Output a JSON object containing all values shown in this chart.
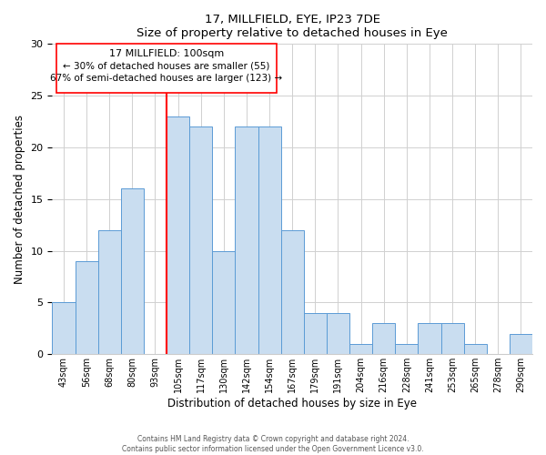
{
  "title": "17, MILLFIELD, EYE, IP23 7DE",
  "subtitle": "Size of property relative to detached houses in Eye",
  "xlabel": "Distribution of detached houses by size in Eye",
  "ylabel": "Number of detached properties",
  "bar_color": "#c9ddf0",
  "bar_edge_color": "#5b9bd5",
  "categories": [
    "43sqm",
    "56sqm",
    "68sqm",
    "80sqm",
    "93sqm",
    "105sqm",
    "117sqm",
    "130sqm",
    "142sqm",
    "154sqm",
    "167sqm",
    "179sqm",
    "191sqm",
    "204sqm",
    "216sqm",
    "228sqm",
    "241sqm",
    "253sqm",
    "265sqm",
    "278sqm",
    "290sqm"
  ],
  "values": [
    5,
    9,
    12,
    16,
    0,
    23,
    22,
    10,
    22,
    22,
    12,
    4,
    4,
    1,
    3,
    1,
    3,
    3,
    1,
    0,
    2
  ],
  "ref_line_label": "17 MILLFIELD: 100sqm",
  "annotation_line1": "← 30% of detached houses are smaller (55)",
  "annotation_line2": "67% of semi-detached houses are larger (123) →",
  "ylim": [
    0,
    30
  ],
  "yticks": [
    0,
    5,
    10,
    15,
    20,
    25,
    30
  ],
  "footer1": "Contains HM Land Registry data © Crown copyright and database right 2024.",
  "footer2": "Contains public sector information licensed under the Open Government Licence v3.0."
}
